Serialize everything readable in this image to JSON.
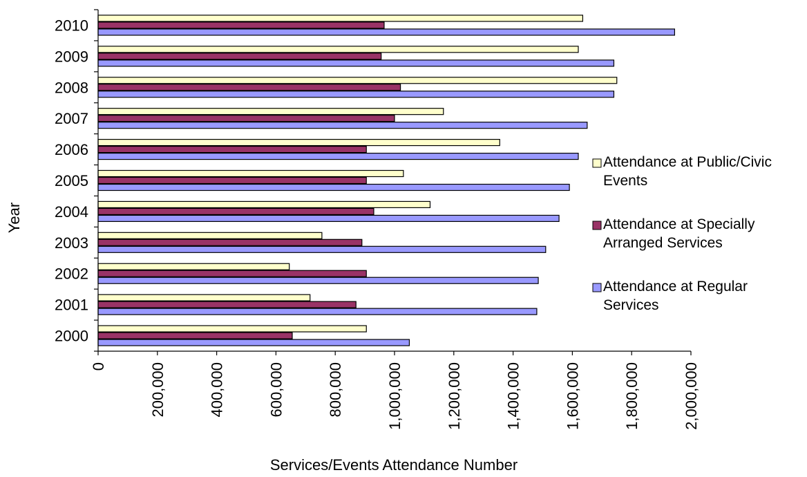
{
  "chart_data": {
    "type": "bar",
    "orientation": "horizontal",
    "title": "",
    "xlabel": "Services/Events Attendance Number",
    "ylabel": "Year",
    "xlim": [
      0,
      2000000
    ],
    "x_ticks": [
      0,
      200000,
      400000,
      600000,
      800000,
      1000000,
      1200000,
      1400000,
      1600000,
      1800000,
      2000000
    ],
    "x_tick_labels": [
      "0",
      "200,000",
      "400,000",
      "600,000",
      "800,000",
      "1,000,000",
      "1,200,000",
      "1,400,000",
      "1,600,000",
      "1,800,000",
      "2,000,000"
    ],
    "categories": [
      "2000",
      "2001",
      "2002",
      "2003",
      "2004",
      "2005",
      "2006",
      "2007",
      "2008",
      "2009",
      "2010"
    ],
    "series": [
      {
        "name": "Attendance at Regular Services",
        "color": "#9999ff",
        "values": [
          1050000,
          1480000,
          1485000,
          1510000,
          1555000,
          1590000,
          1620000,
          1650000,
          1740000,
          1740000,
          1945000
        ]
      },
      {
        "name": "Attendance at Specially Arranged Services",
        "color": "#993366",
        "values": [
          655000,
          870000,
          905000,
          890000,
          930000,
          905000,
          905000,
          1000000,
          1020000,
          955000,
          965000
        ]
      },
      {
        "name": "Attendance at Public/Civic Events",
        "color": "#ffffcc",
        "values": [
          905000,
          715000,
          645000,
          755000,
          1120000,
          1030000,
          1355000,
          1165000,
          1750000,
          1620000,
          1635000
        ]
      }
    ],
    "legend": {
      "placement": "right",
      "items": [
        {
          "lines": [
            "Attendance at Public/Civic",
            "Events"
          ],
          "series_index": 2
        },
        {
          "lines": [
            "Attendance at Specially",
            "Arranged Services"
          ],
          "series_index": 1
        },
        {
          "lines": [
            "Attendance at Regular",
            "Services"
          ],
          "series_index": 0
        }
      ]
    },
    "grid": false
  }
}
